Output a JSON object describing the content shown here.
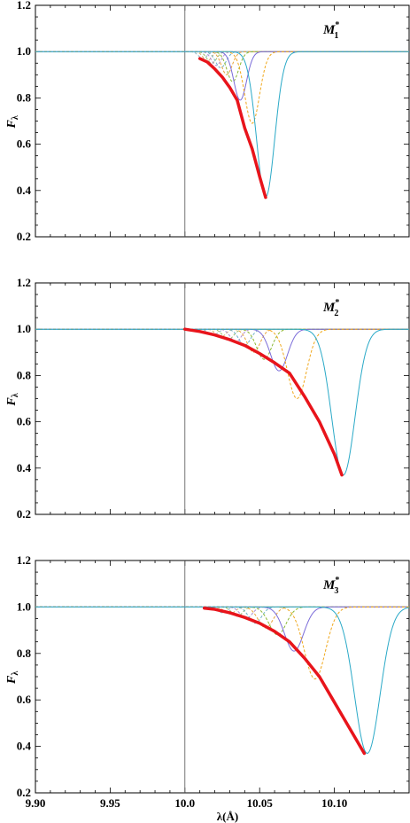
{
  "chart_data": [
    {
      "type": "line",
      "panel_label": "M",
      "panel_subscript": "1",
      "panel_superscript": "*",
      "ylabel": "F",
      "ylabel_subscript": "λ",
      "ylim": [
        0.2,
        1.2
      ],
      "yticks": [
        "0.2",
        "0.4",
        "0.6",
        "0.8",
        "1.0",
        "1.2"
      ],
      "xlim": [
        9.9,
        10.15
      ],
      "x_marker": 10.0,
      "envelope": {
        "color": "#e8141b",
        "x": [
          10.01,
          10.015,
          10.02,
          10.025,
          10.03,
          10.035,
          10.04,
          10.045,
          10.05,
          10.054
        ],
        "y": [
          0.97,
          0.955,
          0.925,
          0.89,
          0.845,
          0.79,
          0.67,
          0.58,
          0.46,
          0.37
        ]
      },
      "profiles": [
        {
          "center": 10.054,
          "depth": 0.63,
          "width": 0.0085,
          "color": "#2aa9c7",
          "style": "solid"
        },
        {
          "center": 10.045,
          "depth": 0.31,
          "width": 0.007,
          "color": "#f0a81c",
          "style": "dashed"
        },
        {
          "center": 10.037,
          "depth": 0.21,
          "width": 0.006,
          "color": "#7b6cd9",
          "style": "solid"
        },
        {
          "center": 10.032,
          "depth": 0.13,
          "width": 0.0055,
          "color": "#8ab833",
          "style": "dashed"
        },
        {
          "center": 10.028,
          "depth": 0.1,
          "width": 0.005,
          "color": "#e8a43a",
          "style": "dashed"
        },
        {
          "center": 10.024,
          "depth": 0.07,
          "width": 0.005,
          "color": "#6fb3c9",
          "style": "dashed"
        },
        {
          "center": 10.021,
          "depth": 0.06,
          "width": 0.0045,
          "color": "#b08fd6",
          "style": "dashed"
        },
        {
          "center": 10.018,
          "depth": 0.05,
          "width": 0.0045,
          "color": "#9cbf6a",
          "style": "dashed"
        },
        {
          "center": 10.015,
          "depth": 0.04,
          "width": 0.004,
          "color": "#d9b36a",
          "style": "dashed"
        },
        {
          "center": 10.012,
          "depth": 0.03,
          "width": 0.004,
          "color": "#8fb7c4",
          "style": "dashed"
        }
      ]
    },
    {
      "type": "line",
      "panel_label": "M",
      "panel_subscript": "2",
      "panel_superscript": "*",
      "ylabel": "F",
      "ylabel_subscript": "λ",
      "ylim": [
        0.2,
        1.2
      ],
      "yticks": [
        "0.2",
        "0.4",
        "0.6",
        "0.8",
        "1.0",
        "1.2"
      ],
      "xlim": [
        9.9,
        10.15
      ],
      "x_marker": 10.0,
      "envelope": {
        "color": "#e8141b",
        "x": [
          10.0,
          10.01,
          10.02,
          10.03,
          10.04,
          10.05,
          10.06,
          10.07,
          10.08,
          10.09,
          10.1,
          10.105
        ],
        "y": [
          1.0,
          0.99,
          0.975,
          0.955,
          0.93,
          0.895,
          0.855,
          0.81,
          0.71,
          0.6,
          0.46,
          0.37
        ]
      },
      "profiles": [
        {
          "center": 10.106,
          "depth": 0.63,
          "width": 0.011,
          "color": "#2aa9c7",
          "style": "solid"
        },
        {
          "center": 10.075,
          "depth": 0.3,
          "width": 0.009,
          "color": "#f0a81c",
          "style": "dashed"
        },
        {
          "center": 10.063,
          "depth": 0.18,
          "width": 0.008,
          "color": "#7b6cd9",
          "style": "solid"
        },
        {
          "center": 10.053,
          "depth": 0.13,
          "width": 0.007,
          "color": "#8ab833",
          "style": "dashed"
        },
        {
          "center": 10.046,
          "depth": 0.1,
          "width": 0.006,
          "color": "#e8a43a",
          "style": "dashed"
        },
        {
          "center": 10.04,
          "depth": 0.07,
          "width": 0.0055,
          "color": "#6fb3c9",
          "style": "dashed"
        },
        {
          "center": 10.034,
          "depth": 0.055,
          "width": 0.005,
          "color": "#b08fd6",
          "style": "dashed"
        },
        {
          "center": 10.029,
          "depth": 0.045,
          "width": 0.005,
          "color": "#9cbf6a",
          "style": "dashed"
        },
        {
          "center": 10.024,
          "depth": 0.035,
          "width": 0.0045,
          "color": "#d9b36a",
          "style": "dashed"
        },
        {
          "center": 10.019,
          "depth": 0.025,
          "width": 0.0045,
          "color": "#8fb7c4",
          "style": "dashed"
        }
      ]
    },
    {
      "type": "line",
      "panel_label": "M",
      "panel_subscript": "3",
      "panel_superscript": "*",
      "ylabel": "F",
      "ylabel_subscript": "λ",
      "ylim": [
        0.2,
        1.2
      ],
      "yticks": [
        "0.2",
        "0.4",
        "0.6",
        "0.8",
        "1.0",
        "1.2"
      ],
      "xlim": [
        9.9,
        10.15
      ],
      "xticks": [
        "9.90",
        "9.95",
        "10.0",
        "10.05",
        "10.10"
      ],
      "xtick_values": [
        9.9,
        9.95,
        10.0,
        10.05,
        10.1
      ],
      "xlabel": "λ(Å)",
      "x_marker": 10.0,
      "envelope": {
        "color": "#e8141b",
        "x": [
          10.013,
          10.02,
          10.03,
          10.04,
          10.05,
          10.06,
          10.07,
          10.08,
          10.09,
          10.1,
          10.11,
          10.12
        ],
        "y": [
          0.995,
          0.99,
          0.975,
          0.955,
          0.93,
          0.895,
          0.85,
          0.78,
          0.7,
          0.59,
          0.48,
          0.37
        ]
      },
      "profiles": [
        {
          "center": 10.122,
          "depth": 0.63,
          "width": 0.012,
          "color": "#2aa9c7",
          "style": "solid"
        },
        {
          "center": 10.087,
          "depth": 0.31,
          "width": 0.01,
          "color": "#f0a81c",
          "style": "dashed"
        },
        {
          "center": 10.073,
          "depth": 0.19,
          "width": 0.009,
          "color": "#7b6cd9",
          "style": "solid"
        },
        {
          "center": 10.062,
          "depth": 0.12,
          "width": 0.008,
          "color": "#8ab833",
          "style": "dashed"
        },
        {
          "center": 10.054,
          "depth": 0.09,
          "width": 0.007,
          "color": "#e8a43a",
          "style": "dashed"
        },
        {
          "center": 10.047,
          "depth": 0.07,
          "width": 0.006,
          "color": "#6fb3c9",
          "style": "dashed"
        },
        {
          "center": 10.041,
          "depth": 0.05,
          "width": 0.0055,
          "color": "#b08fd6",
          "style": "dashed"
        },
        {
          "center": 10.035,
          "depth": 0.04,
          "width": 0.005,
          "color": "#9cbf6a",
          "style": "dashed"
        },
        {
          "center": 10.03,
          "depth": 0.03,
          "width": 0.005,
          "color": "#d9b36a",
          "style": "dashed"
        },
        {
          "center": 10.025,
          "depth": 0.025,
          "width": 0.0045,
          "color": "#8fb7c4",
          "style": "dashed"
        }
      ]
    }
  ]
}
